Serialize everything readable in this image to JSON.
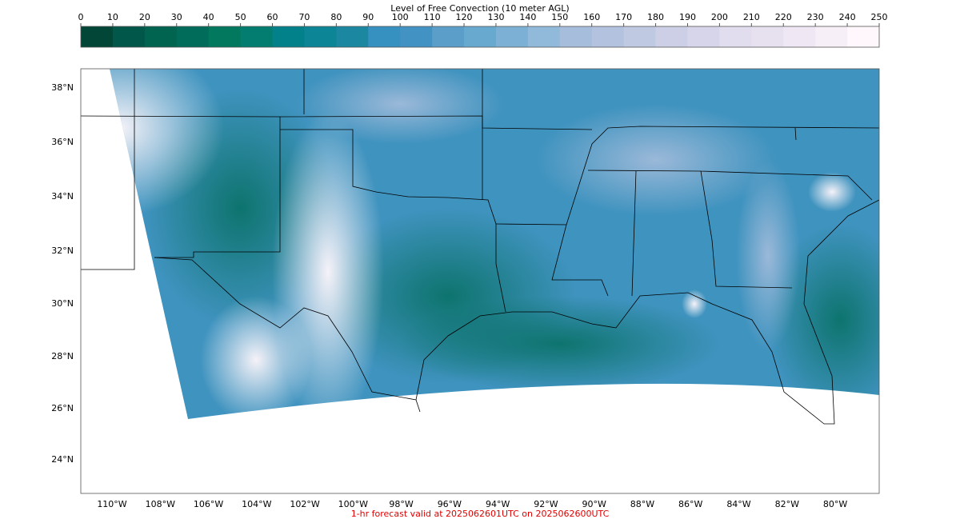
{
  "colorbar": {
    "title": "Level of Free Convection (10 meter AGL)",
    "ticks": [
      0,
      10,
      20,
      30,
      40,
      50,
      60,
      70,
      80,
      90,
      100,
      110,
      120,
      130,
      140,
      150,
      160,
      170,
      180,
      190,
      200,
      210,
      220,
      230,
      240,
      250
    ],
    "colors": [
      "#014636",
      "#01574a",
      "#016450",
      "#016c59",
      "#02785f",
      "#027d6f",
      "#02818a",
      "#0c8597",
      "#1b87a0",
      "#3690c0",
      "#4293c3",
      "#5a9ec9",
      "#67a9cf",
      "#7cb0d4",
      "#91b9d9",
      "#a6bddb",
      "#b2c2df",
      "#bfc9e2",
      "#cccfe6",
      "#d7d5e9",
      "#e1dcee",
      "#e7e1ef",
      "#efe7f3",
      "#f6eff7",
      "#fff7fb"
    ]
  },
  "map": {
    "lat_labels": [
      "38°N",
      "36°N",
      "34°N",
      "32°N",
      "30°N",
      "28°N",
      "26°N",
      "24°N"
    ],
    "lon_labels": [
      "110°W",
      "108°W",
      "106°W",
      "104°W",
      "102°W",
      "100°W",
      "98°W",
      "96°W",
      "94°W",
      "92°W",
      "90°W",
      "88°W",
      "86°W",
      "84°W",
      "82°W",
      "80°W"
    ]
  },
  "footer": "1-hr forecast valid at 2025062601UTC on 2025062600UTC"
}
